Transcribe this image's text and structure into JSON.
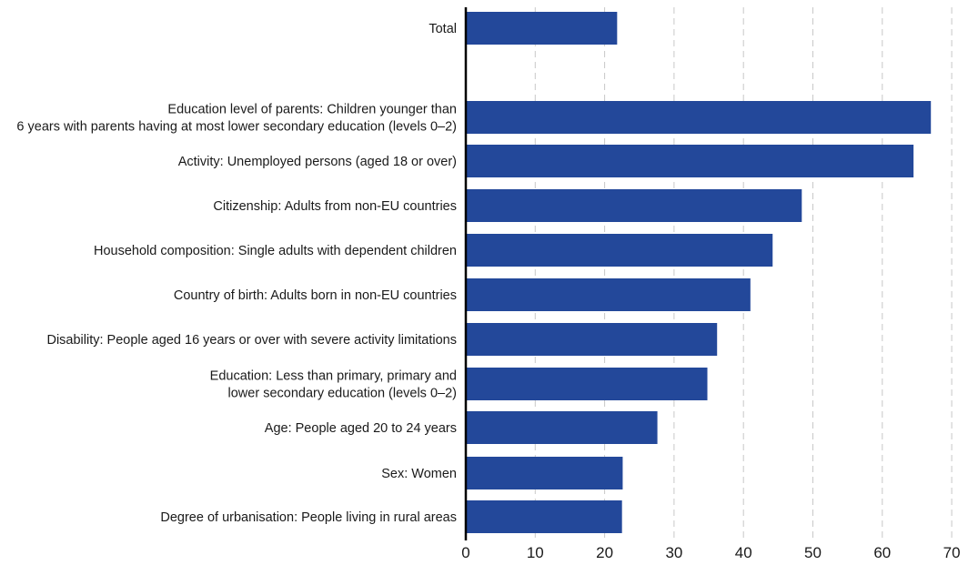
{
  "colors": {
    "bar": "#23489a",
    "grid": "#c8c8c8",
    "axis": "#000000",
    "text": "#1a1a1a"
  },
  "chart_data": {
    "type": "bar",
    "orientation": "horizontal",
    "title": "",
    "xlabel": "",
    "ylabel": "",
    "xlim": [
      0,
      70
    ],
    "grid": "vertical dashed",
    "legend": "none",
    "ticks": [
      "0",
      "10",
      "20",
      "30",
      "40",
      "50",
      "60",
      "70"
    ],
    "categories": [
      {
        "lines": [
          "Total"
        ],
        "value": 21.8
      },
      {
        "lines": [
          "Education level of parents: Children younger than",
          "6 years with parents having at most lower secondary education (levels 0–2)"
        ],
        "value": 67.0
      },
      {
        "lines": [
          "Activity: Unemployed persons (aged 18 or over)"
        ],
        "value": 64.5
      },
      {
        "lines": [
          "Citizenship: Adults from non-EU countries"
        ],
        "value": 48.4
      },
      {
        "lines": [
          "Household composition: Single adults with dependent children"
        ],
        "value": 44.2
      },
      {
        "lines": [
          "Country of birth: Adults born in non-EU countries"
        ],
        "value": 41.0
      },
      {
        "lines": [
          "Disability: People aged 16 years or over with severe activity limitations"
        ],
        "value": 36.2
      },
      {
        "lines": [
          "Education: Less than primary, primary and",
          "lower secondary education (levels 0–2)"
        ],
        "value": 34.8
      },
      {
        "lines": [
          "Age: People aged 20 to 24 years"
        ],
        "value": 27.6
      },
      {
        "lines": [
          "Sex: Women"
        ],
        "value": 22.6
      },
      {
        "lines": [
          "Degree of urbanisation: People living in rural areas"
        ],
        "value": 22.5
      }
    ]
  }
}
